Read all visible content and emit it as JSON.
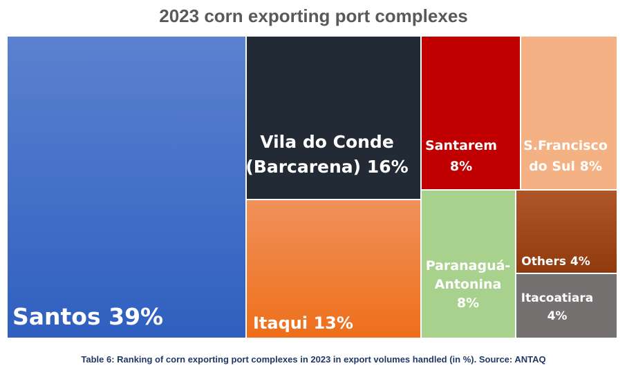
{
  "title": "2023 corn exporting port complexes",
  "caption": "Table 6: Ranking of corn exporting port complexes in 2023 in export volumes handled (in %). Source: ANTAQ",
  "chart_data": {
    "type": "treemap",
    "unit": "%",
    "items": [
      {
        "label_lines": [
          "Santos 39%"
        ],
        "name": "Santos",
        "value": 39,
        "color": "#4472c4",
        "color_top": "#5b82d0",
        "color_bottom": "#2f5fbf"
      },
      {
        "label_lines": [
          "Vila do Conde",
          "(Barcarena) 16%"
        ],
        "name": "Vila do Conde (Barcarena)",
        "value": 16,
        "color": "#222a35"
      },
      {
        "label_lines": [
          "Itaqui 13%"
        ],
        "name": "Itaqui",
        "value": 13,
        "color": "#ed7d31",
        "color_top": "#f0925a",
        "color_bottom": "#ee6e1a"
      },
      {
        "label_lines": [
          "Santarem",
          "8%"
        ],
        "name": "Santarem",
        "value": 8,
        "color": "#c00000"
      },
      {
        "label_lines": [
          "S.Francisco",
          "do Sul 8%"
        ],
        "name": "S.Francisco do Sul",
        "value": 8,
        "color": "#f4b183"
      },
      {
        "label_lines": [
          "Paranaguá-",
          "Antonina",
          "8%"
        ],
        "name": "Paranaguá-Antonina",
        "value": 8,
        "color": "#a9d18e"
      },
      {
        "label_lines": [
          "Others 4%"
        ],
        "name": "Others",
        "value": 4,
        "color": "#c55a11",
        "color_top": "#b0572a",
        "color_bottom": "#8f3a0e"
      },
      {
        "label_lines": [
          "Itacoatiara",
          "4%"
        ],
        "name": "Itacoatiara",
        "value": 4,
        "color": "#767171"
      }
    ]
  }
}
